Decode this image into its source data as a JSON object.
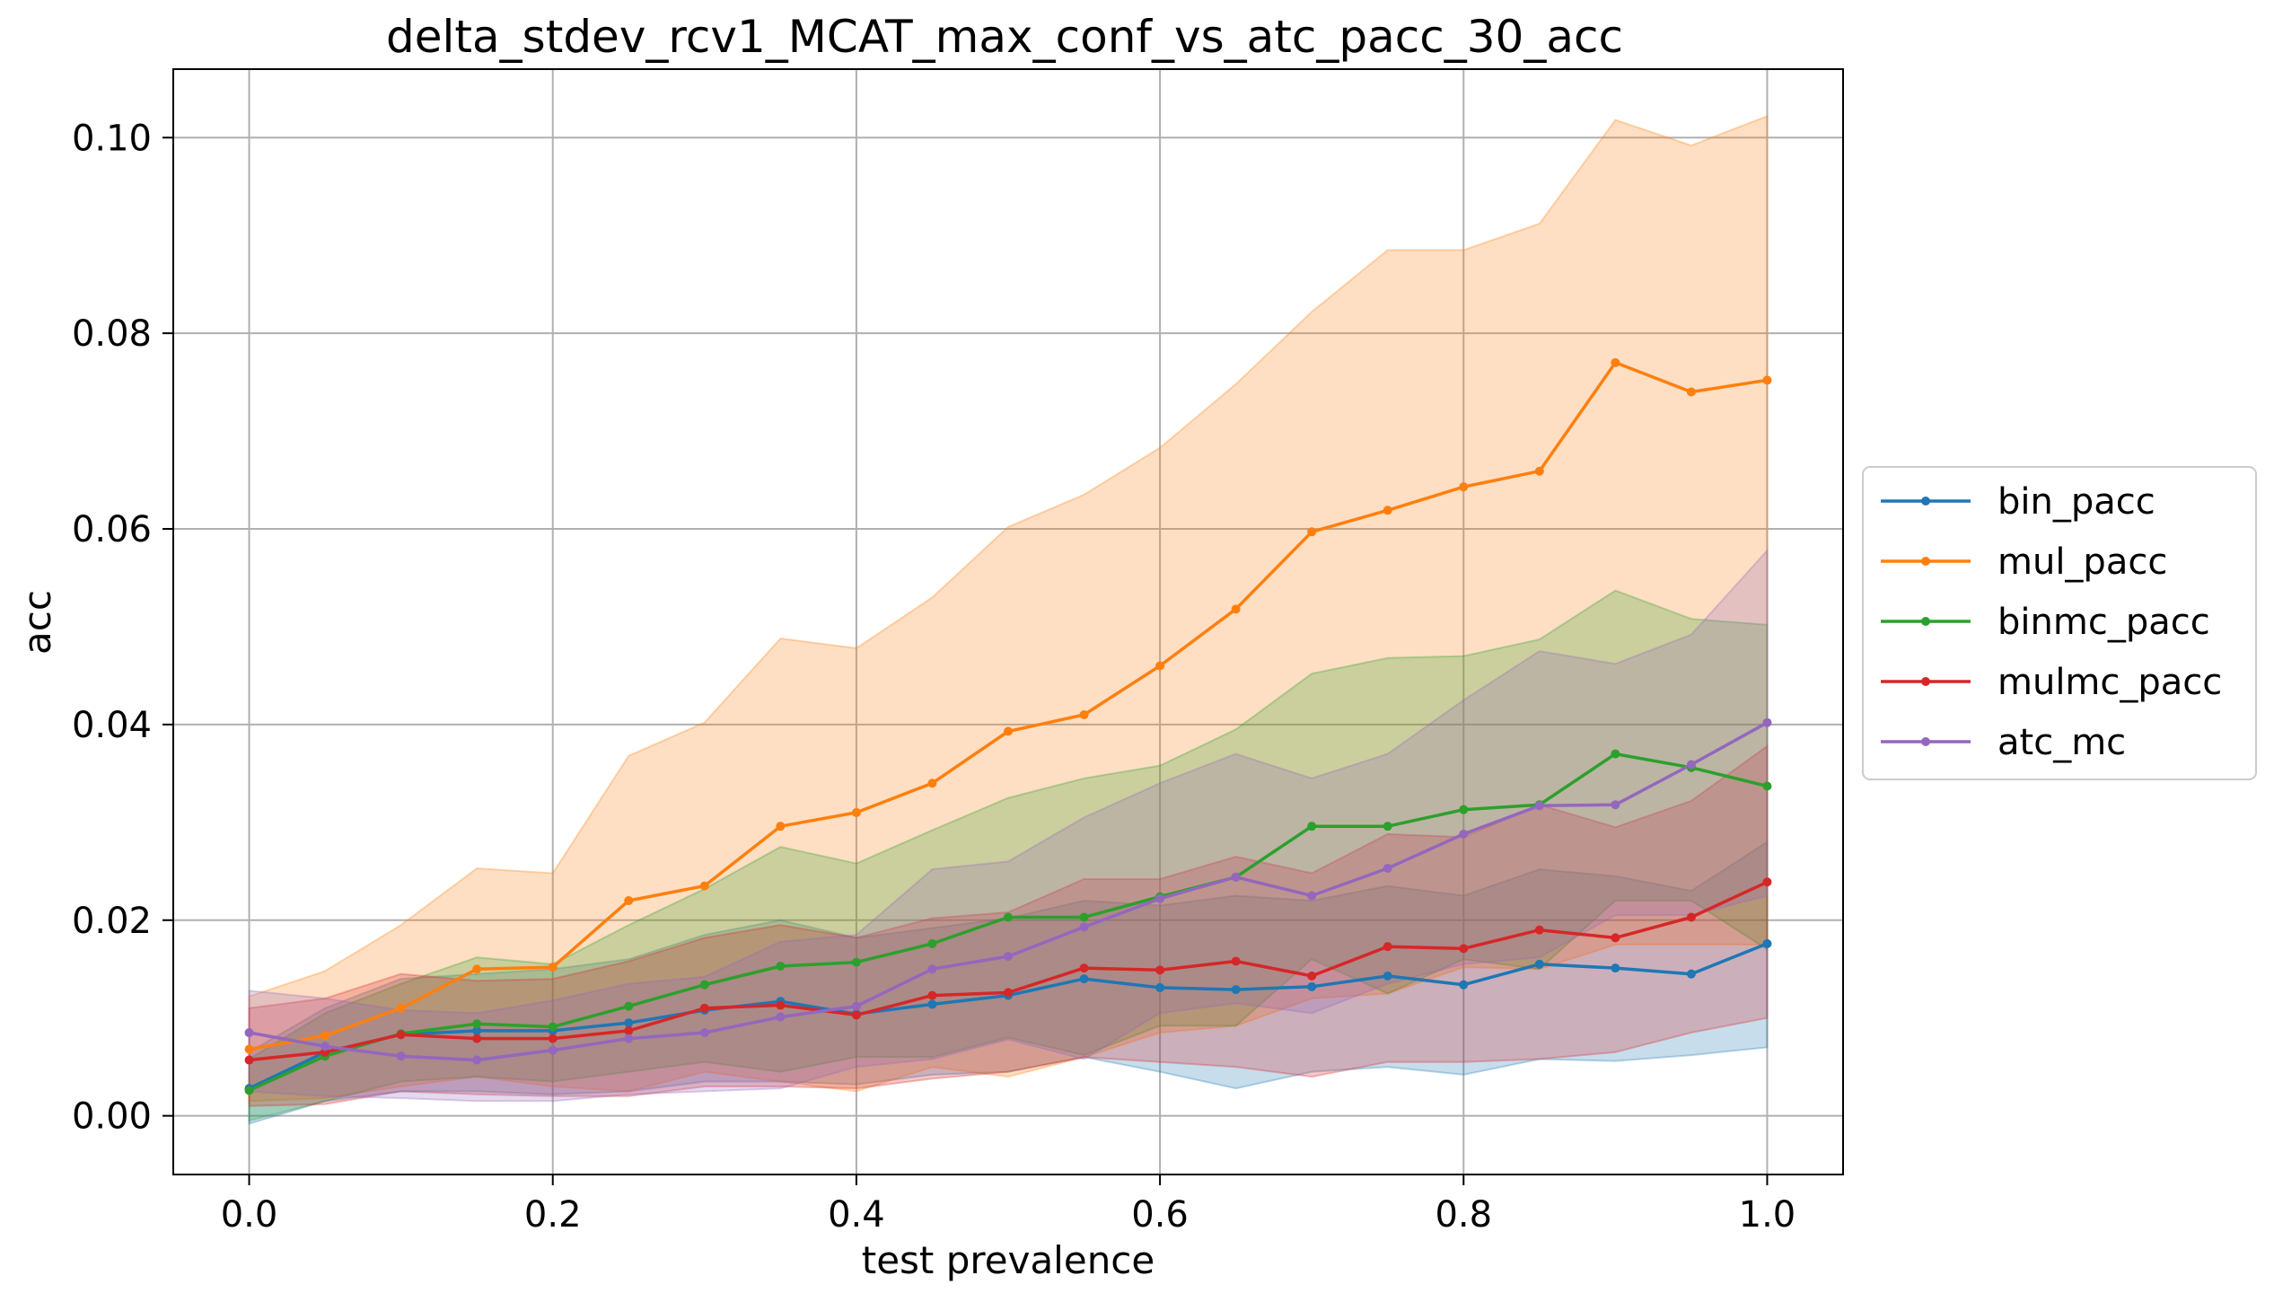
{
  "chart_data": {
    "type": "line",
    "title": "delta_stdev_rcv1_MCAT_max_conf_vs_atc_pacc_30_acc",
    "xlabel": "test prevalence",
    "ylabel": "acc",
    "xlim": [
      -0.05,
      1.05
    ],
    "ylim": [
      -0.006,
      0.107
    ],
    "xticks": [
      0.0,
      0.2,
      0.4,
      0.6,
      0.8,
      1.0
    ],
    "xtick_labels": [
      "0.0",
      "0.2",
      "0.4",
      "0.6",
      "0.8",
      "1.0"
    ],
    "yticks": [
      0.0,
      0.02,
      0.04,
      0.06,
      0.08,
      0.1
    ],
    "ytick_labels": [
      "0.00",
      "0.02",
      "0.04",
      "0.06",
      "0.08",
      "0.10"
    ],
    "grid": true,
    "legend_position": "center-right, outside plot",
    "x": [
      0.0,
      0.05,
      0.1,
      0.15,
      0.2,
      0.25,
      0.3,
      0.35,
      0.4,
      0.45,
      0.5,
      0.55,
      0.6,
      0.65,
      0.7,
      0.75,
      0.8,
      0.85,
      0.9,
      0.95,
      1.0
    ],
    "series": [
      {
        "name": "bin_pacc",
        "color": "#1f77b4",
        "values": [
          0.0028,
          0.0065,
          0.0083,
          0.0087,
          0.0087,
          0.0095,
          0.0108,
          0.0117,
          0.0104,
          0.0114,
          0.0123,
          0.014,
          0.0131,
          0.0129,
          0.0132,
          0.0143,
          0.0134,
          0.0155,
          0.0151,
          0.0145,
          0.0176
        ],
        "lower": [
          -0.0008,
          0.0015,
          0.0025,
          0.0025,
          0.0022,
          0.0025,
          0.0035,
          0.0035,
          0.0032,
          0.0042,
          0.0045,
          0.006,
          0.0045,
          0.0028,
          0.0045,
          0.005,
          0.0042,
          0.0058,
          0.0056,
          0.0062,
          0.007
        ],
        "upper": [
          0.0065,
          0.011,
          0.014,
          0.0145,
          0.015,
          0.016,
          0.0185,
          0.02,
          0.0182,
          0.0192,
          0.0202,
          0.022,
          0.0215,
          0.0225,
          0.022,
          0.0235,
          0.0225,
          0.0252,
          0.0245,
          0.023,
          0.028
        ]
      },
      {
        "name": "mul_pacc",
        "color": "#ff7f0e",
        "values": [
          0.0068,
          0.0082,
          0.011,
          0.015,
          0.0152,
          0.022,
          0.0235,
          0.0296,
          0.031,
          0.034,
          0.0393,
          0.041,
          0.046,
          0.0518,
          0.0597,
          0.0619,
          0.0643,
          0.0659,
          0.077,
          0.074,
          0.0752
        ],
        "lower": [
          0.0015,
          0.0018,
          0.003,
          0.004,
          0.003,
          0.0025,
          0.0045,
          0.0035,
          0.0025,
          0.005,
          0.004,
          0.006,
          0.0085,
          0.0092,
          0.012,
          0.0125,
          0.0152,
          0.015,
          0.0175,
          0.0175,
          0.0175
        ],
        "upper": [
          0.0122,
          0.0148,
          0.0195,
          0.0253,
          0.0248,
          0.0368,
          0.0402,
          0.0488,
          0.0478,
          0.053,
          0.0602,
          0.0635,
          0.0683,
          0.0748,
          0.0822,
          0.0885,
          0.0885,
          0.0912,
          0.1018,
          0.0992,
          0.1022
        ]
      },
      {
        "name": "binmc_pacc",
        "color": "#2ca02c",
        "values": [
          0.0026,
          0.0061,
          0.0084,
          0.0094,
          0.0091,
          0.0112,
          0.0134,
          0.0153,
          0.0157,
          0.0176,
          0.0203,
          0.0203,
          0.0224,
          0.0244,
          0.0296,
          0.0296,
          0.0313,
          0.0318,
          0.037,
          0.0356,
          0.0337
        ],
        "lower": [
          -0.0005,
          0.0015,
          0.0035,
          0.004,
          0.0035,
          0.0045,
          0.0055,
          0.0045,
          0.006,
          0.006,
          0.008,
          0.0062,
          0.0092,
          0.0092,
          0.016,
          0.0125,
          0.016,
          0.015,
          0.022,
          0.022,
          0.017
        ],
        "upper": [
          0.0058,
          0.0105,
          0.0135,
          0.0162,
          0.0155,
          0.0195,
          0.0232,
          0.0275,
          0.0258,
          0.0292,
          0.0325,
          0.0345,
          0.0358,
          0.0395,
          0.0452,
          0.0468,
          0.047,
          0.0487,
          0.0537,
          0.0508,
          0.0502
        ]
      },
      {
        "name": "mulmc_pacc",
        "color": "#d62728",
        "values": [
          0.0057,
          0.0065,
          0.0083,
          0.0079,
          0.0079,
          0.0087,
          0.011,
          0.0113,
          0.0103,
          0.0123,
          0.0126,
          0.0151,
          0.0149,
          0.0158,
          0.0143,
          0.0173,
          0.0171,
          0.019,
          0.0182,
          0.0203,
          0.0239
        ],
        "lower": [
          0.001,
          0.0012,
          0.0025,
          0.0022,
          0.002,
          0.002,
          0.003,
          0.003,
          0.0028,
          0.0038,
          0.0045,
          0.006,
          0.0055,
          0.005,
          0.004,
          0.0055,
          0.0055,
          0.0058,
          0.0065,
          0.0085,
          0.01
        ],
        "upper": [
          0.011,
          0.012,
          0.0145,
          0.0138,
          0.014,
          0.0158,
          0.0182,
          0.0195,
          0.0182,
          0.0202,
          0.0208,
          0.0242,
          0.0242,
          0.0265,
          0.0248,
          0.0288,
          0.0285,
          0.0318,
          0.0295,
          0.0322,
          0.0378
        ]
      },
      {
        "name": "atc_mc",
        "color": "#9467bd",
        "values": [
          0.0085,
          0.0071,
          0.0061,
          0.0057,
          0.0067,
          0.0079,
          0.0085,
          0.0101,
          0.0112,
          0.015,
          0.0163,
          0.0193,
          0.0222,
          0.0244,
          0.0225,
          0.0253,
          0.0288,
          0.0317,
          0.0318,
          0.0359,
          0.0402
        ],
        "lower": [
          0.0025,
          0.002,
          0.0018,
          0.0015,
          0.0015,
          0.0022,
          0.0025,
          0.0028,
          0.005,
          0.0058,
          0.0078,
          0.0058,
          0.0105,
          0.0115,
          0.0105,
          0.0135,
          0.0155,
          0.0162,
          0.0205,
          0.0205,
          0.0225
        ],
        "upper": [
          0.0128,
          0.012,
          0.0108,
          0.0105,
          0.0118,
          0.0135,
          0.0142,
          0.0178,
          0.0185,
          0.0252,
          0.026,
          0.0305,
          0.034,
          0.037,
          0.0345,
          0.037,
          0.0425,
          0.0475,
          0.0462,
          0.0492,
          0.0578
        ]
      }
    ]
  }
}
